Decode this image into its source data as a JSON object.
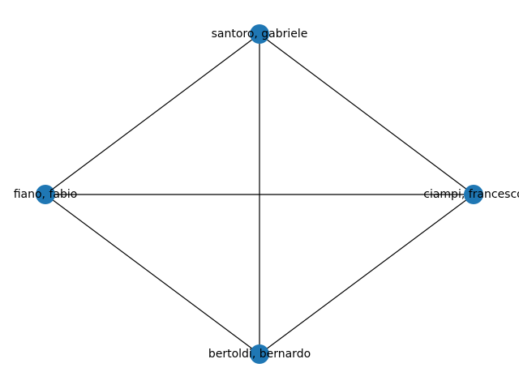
{
  "graph": {
    "type": "undirected-network",
    "layout": "diamond",
    "node_color": "#1f77b4",
    "edge_color": "#000000",
    "nodes": [
      {
        "id": "santoro",
        "label": "santoro, gabriele",
        "position": "top"
      },
      {
        "id": "fiano",
        "label": "fiano, fabio",
        "position": "left"
      },
      {
        "id": "ciampi",
        "label": "ciampi, francesco",
        "position": "right"
      },
      {
        "id": "bertoldi",
        "label": "bertoldi, bernardo",
        "position": "bottom"
      }
    ],
    "edges": [
      {
        "source": "santoro",
        "target": "fiano"
      },
      {
        "source": "santoro",
        "target": "ciampi"
      },
      {
        "source": "santoro",
        "target": "bertoldi"
      },
      {
        "source": "fiano",
        "target": "ciampi"
      },
      {
        "source": "fiano",
        "target": "bertoldi"
      },
      {
        "source": "ciampi",
        "target": "bertoldi"
      }
    ]
  }
}
